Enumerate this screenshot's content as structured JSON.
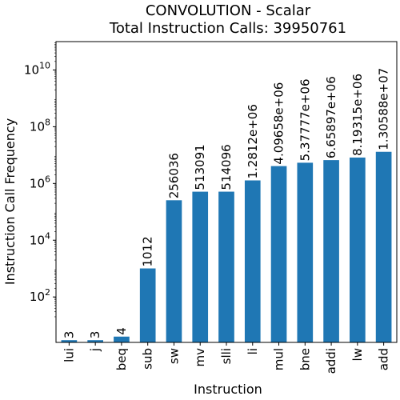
{
  "chart_data": {
    "type": "bar",
    "title": "CONVOLUTION - Scalar",
    "subtitle": "Total Instruction Calls: 39950761",
    "xlabel": "Instruction",
    "ylabel": "Instruction Call Frequency",
    "yscale": "log",
    "ylim": [
      2.5,
      100000000000.0
    ],
    "ytick_values": [
      100,
      10000,
      1000000,
      100000000,
      10000000000
    ],
    "ytick_labels": [
      "10",
      "10",
      "10",
      "10",
      "10"
    ],
    "ytick_exponents": [
      "2",
      "4",
      "6",
      "8",
      "10"
    ],
    "grid": false,
    "bar_color": "#1f77b4",
    "categories": [
      "lui",
      "j",
      "beq",
      "sub",
      "sw",
      "mv",
      "slli",
      "li",
      "mul",
      "bne",
      "addi",
      "lw",
      "add"
    ],
    "values": [
      3,
      3,
      4,
      1012,
      256036,
      513091,
      514096,
      1281200,
      4096580,
      5377770,
      6658970,
      8193150,
      13058800
    ],
    "data_labels": [
      "3",
      "3",
      "4",
      "1012",
      "256036",
      "513091",
      "514096",
      "1.2812e+06",
      "4.09658e+06",
      "5.37777e+06",
      "6.65897e+06",
      "8.19315e+06",
      "1.30588e+07"
    ]
  }
}
